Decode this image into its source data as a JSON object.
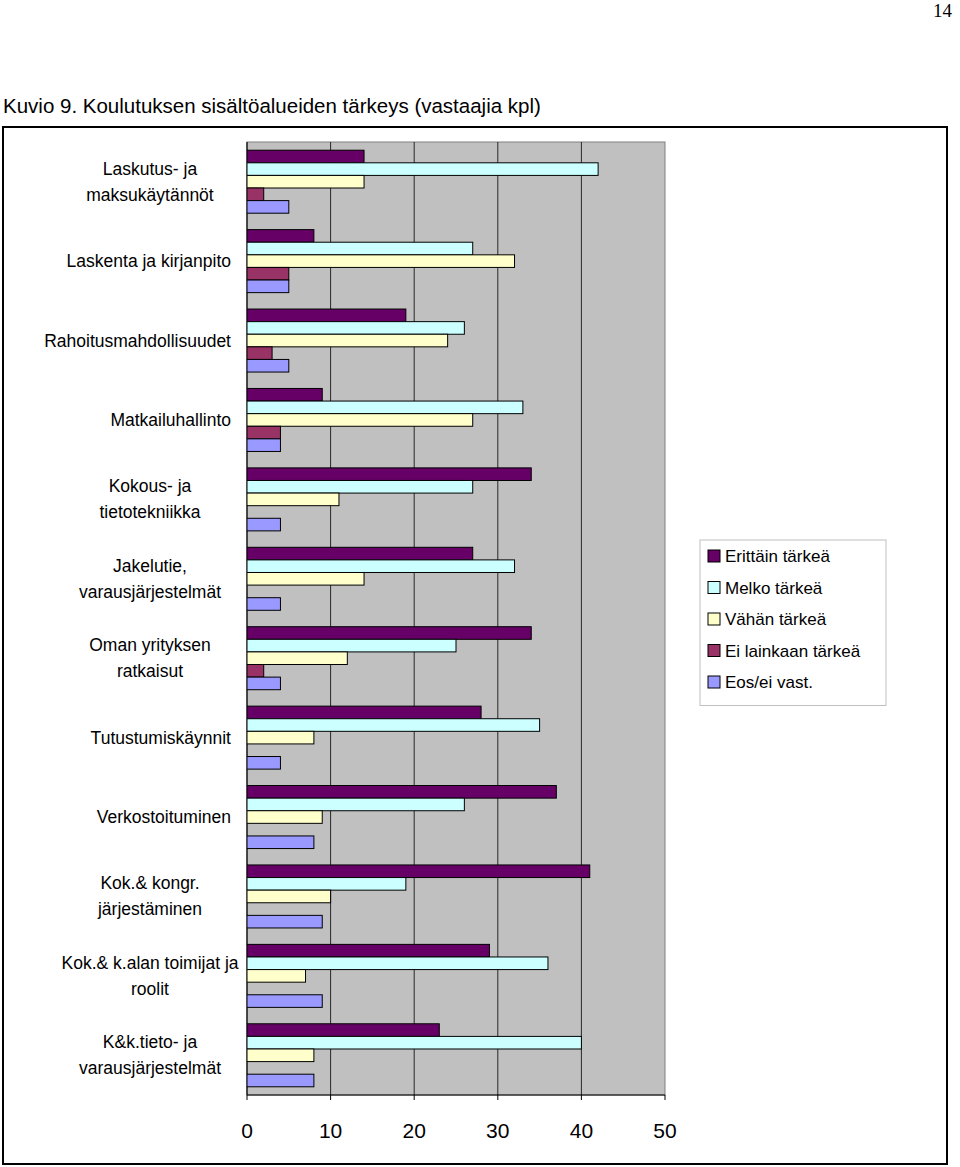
{
  "page_number": "14",
  "chart_data": {
    "type": "bar",
    "orientation": "horizontal",
    "title": "Kuvio 9. Koulutuksen sisältöalueiden tärkeys (vastaajia kpl)",
    "categories": [
      "Laskutus- ja\nmaksukäytännöt",
      "Laskenta ja kirjanpito",
      "Rahoitusmahdollisuudet",
      "Matkailuhallinto",
      "Kokous- ja\ntietotekniikka",
      "Jakelutie,\nvarausjärjestelmät",
      "Oman yrityksen\nratkaisut",
      "Tutustumiskäynnit",
      "Verkostoituminen",
      "Kok.& kongr.\njärjestäminen",
      "Kok.& k.alan toimijat ja\nroolit",
      "K&k.tieto- ja\nvarausjärjestelmät"
    ],
    "series": [
      {
        "name": "Erittäin tärkeä",
        "color": "#660066",
        "values": [
          14,
          8,
          19,
          9,
          34,
          27,
          34,
          28,
          37,
          41,
          29,
          23
        ]
      },
      {
        "name": "Melko tärkeä",
        "color": "#ccffff",
        "values": [
          42,
          27,
          26,
          33,
          27,
          32,
          25,
          35,
          26,
          19,
          36,
          40
        ]
      },
      {
        "name": "Vähän tärkeä",
        "color": "#ffffcc",
        "values": [
          14,
          32,
          24,
          27,
          11,
          14,
          12,
          8,
          9,
          10,
          7,
          8
        ]
      },
      {
        "name": "Ei lainkaan tärkeä",
        "color": "#993366",
        "values": [
          2,
          5,
          3,
          4,
          0,
          0,
          2,
          0,
          0,
          0,
          0,
          0
        ]
      },
      {
        "name": "Eos/ei vast.",
        "color": "#9999ff",
        "values": [
          5,
          5,
          5,
          4,
          4,
          4,
          4,
          4,
          8,
          9,
          9,
          8
        ]
      }
    ],
    "xlim": [
      0,
      50
    ],
    "xticks": [
      0,
      10,
      20,
      30,
      40,
      50
    ],
    "grid": true,
    "legend": "right"
  }
}
